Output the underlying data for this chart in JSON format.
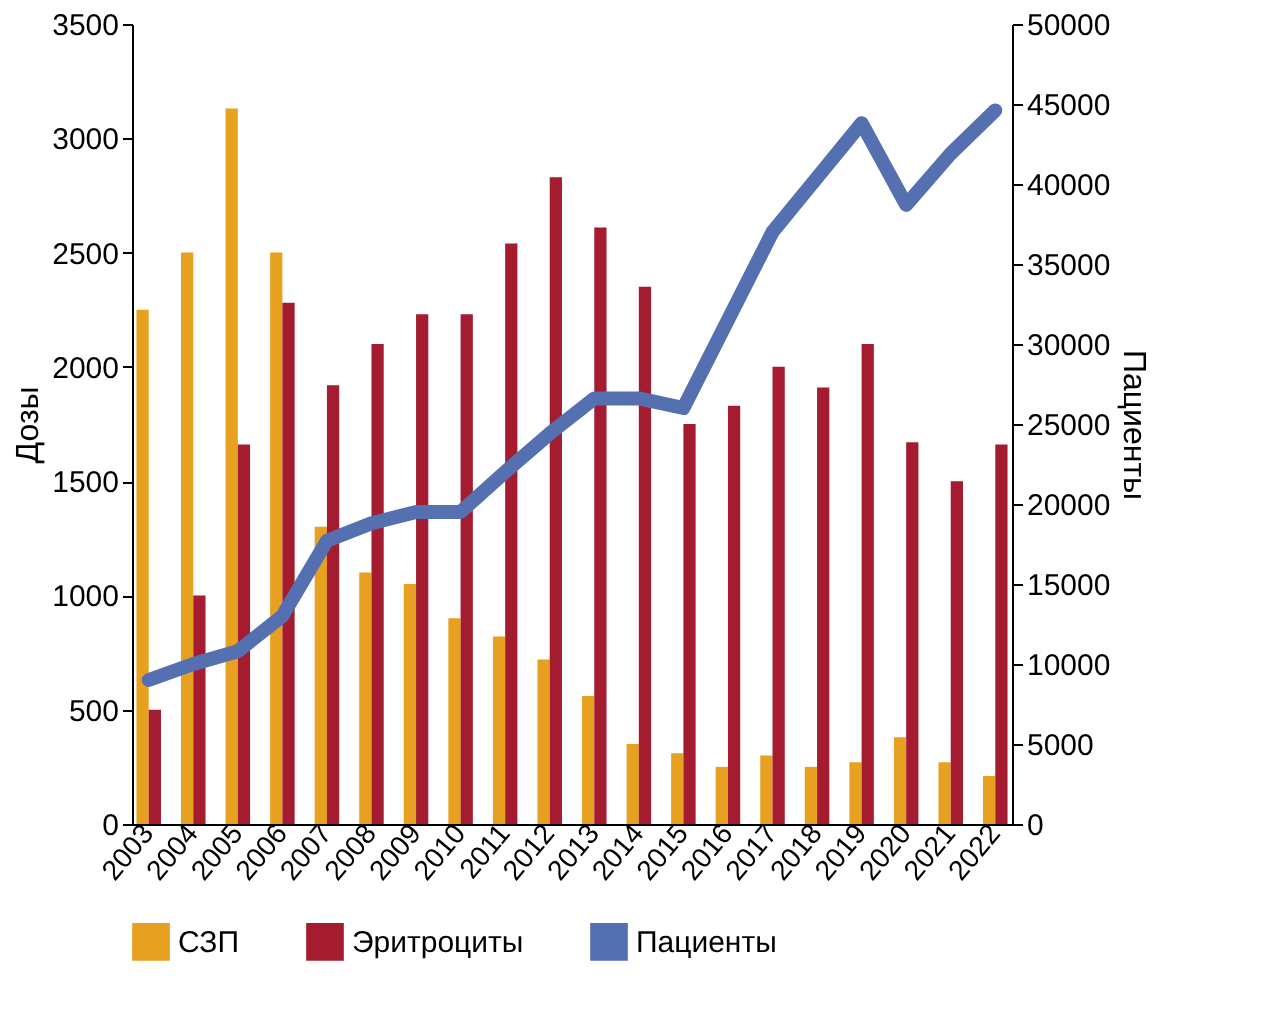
{
  "chart_data": {
    "type": "bar",
    "categories": [
      "2003",
      "2004",
      "2005",
      "2006",
      "2007",
      "2008",
      "2009",
      "2010",
      "2011",
      "2012",
      "2013",
      "2014",
      "2015",
      "2016",
      "2017",
      "2018",
      "2019",
      "2020",
      "2021",
      "2022"
    ],
    "series": [
      {
        "name": "СЗП",
        "color": "#e8a020",
        "values": [
          2250,
          2500,
          3130,
          2500,
          1300,
          1100,
          1050,
          900,
          820,
          720,
          560,
          350,
          310,
          250,
          300,
          250,
          270,
          380,
          270,
          210
        ]
      },
      {
        "name": "Эритроциты",
        "color": "#a51c30",
        "values": [
          500,
          1000,
          1660,
          2280,
          1920,
          2100,
          2230,
          2230,
          2540,
          2830,
          2610,
          2350,
          1750,
          1830,
          2000,
          1910,
          2100,
          1670,
          1500,
          1660
        ]
      },
      {
        "name": "Пациенты",
        "color": "#5470b0",
        "type": "line",
        "axis": "y2",
        "values": [
          9000,
          10000,
          10800,
          13000,
          17700,
          18800,
          19500,
          19500,
          22000,
          24400,
          26600,
          26600,
          26000,
          31500,
          37000,
          40400,
          43800,
          38700,
          41900,
          44600
        ]
      }
    ],
    "ylabel": "Дозы",
    "y2label": "Пациенты",
    "ylim": [
      0,
      3500
    ],
    "yticks": [
      0,
      500,
      1000,
      1500,
      2000,
      2500,
      3000,
      3500
    ],
    "y2lim": [
      0,
      50000
    ],
    "y2ticks": [
      0,
      5000,
      10000,
      15000,
      20000,
      25000,
      30000,
      35000,
      40000,
      45000,
      50000
    ],
    "legend": "bottom",
    "line_style": "solid",
    "marker": "none"
  }
}
